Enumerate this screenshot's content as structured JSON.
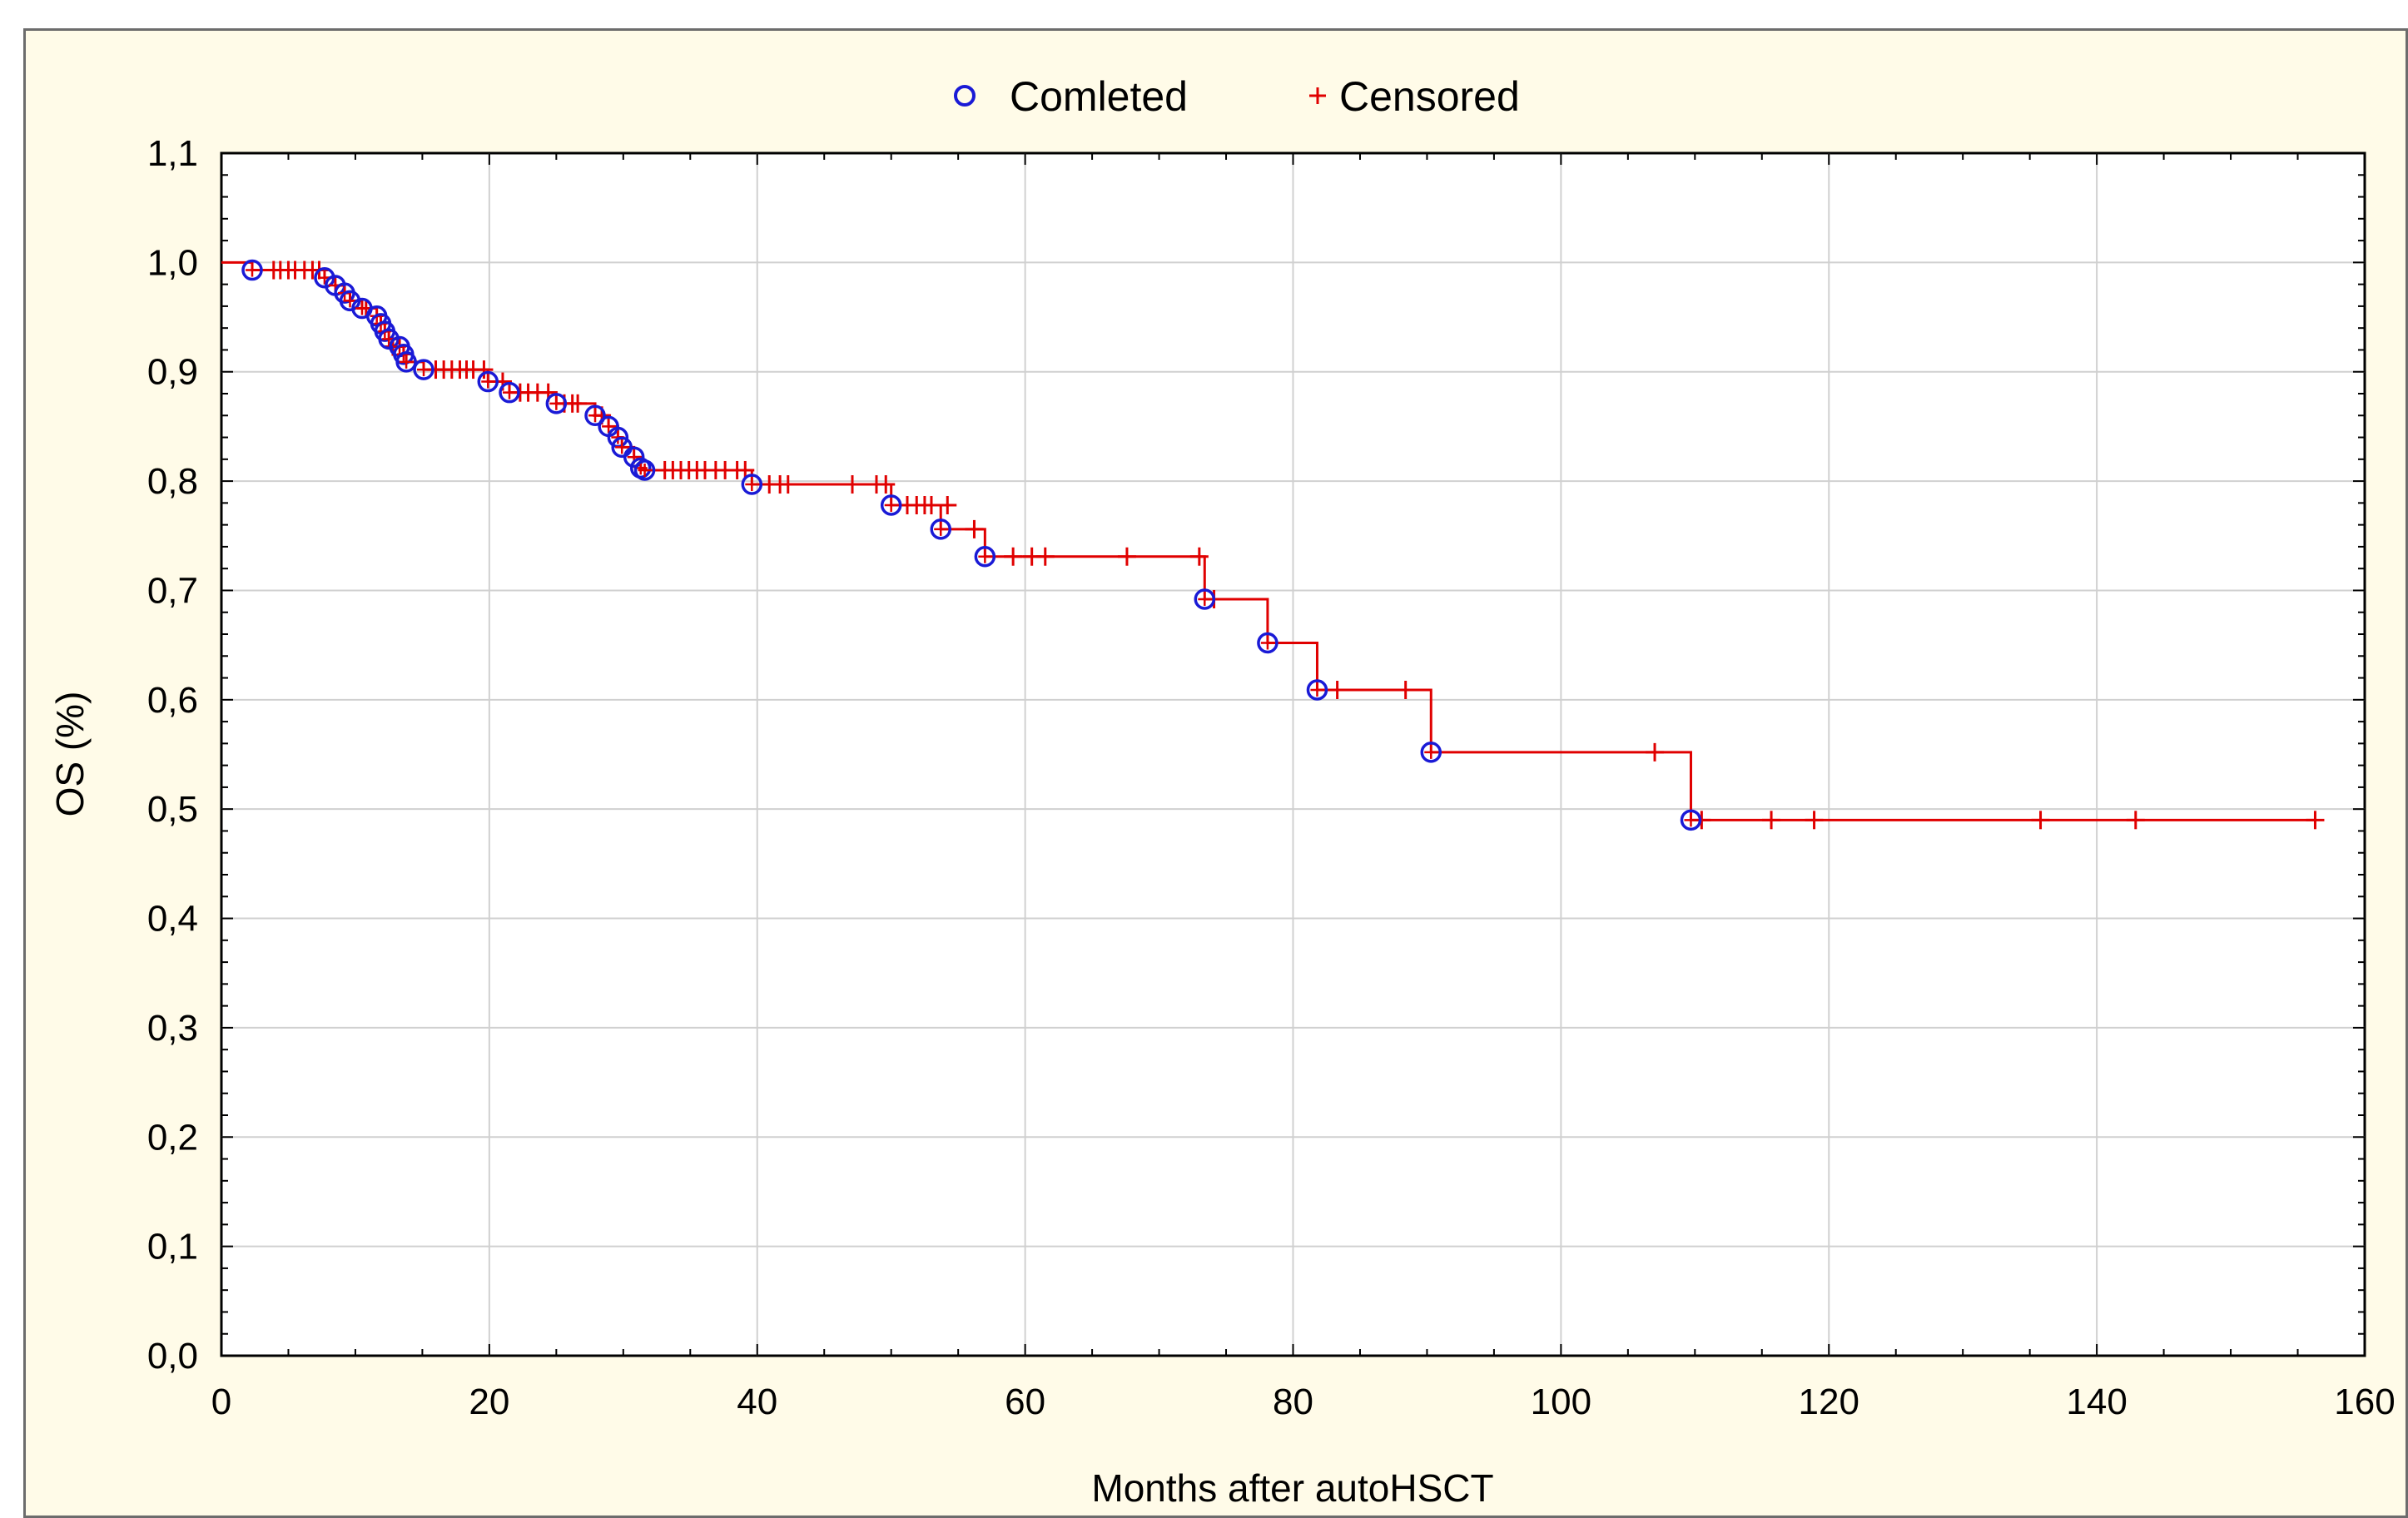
{
  "colors": {
    "background": "#fffbe8",
    "plot_background": "#ffffff",
    "grid": "#d0d0d0",
    "curve": "#e00000",
    "completed_marker": "#1a1ad6",
    "censored_marker": "#e00000",
    "text": "#000000"
  },
  "legend": {
    "completed_label": "Comleted",
    "censored_label": "Censored",
    "completed_icon": "circle-marker-icon",
    "censored_icon": "plus-marker-icon",
    "placement": "top-center"
  },
  "chart_data": {
    "type": "line",
    "subtype": "kaplan-meier step curve",
    "title": "",
    "xlabel": "Months after autoHSCT",
    "ylabel": "OS (%)",
    "xlim": [
      0,
      160
    ],
    "ylim": [
      0.0,
      1.1
    ],
    "x_ticks": [
      0,
      20,
      40,
      60,
      80,
      100,
      120,
      140,
      160
    ],
    "x_tick_labels": [
      "0",
      "20",
      "40",
      "60",
      "80",
      "100",
      "120",
      "140",
      "160"
    ],
    "y_ticks": [
      0.0,
      0.1,
      0.2,
      0.3,
      0.4,
      0.5,
      0.6,
      0.7,
      0.8,
      0.9,
      1.0,
      1.1
    ],
    "y_tick_labels": [
      "0,0",
      "0,1",
      "0,2",
      "0,3",
      "0,4",
      "0,5",
      "0,6",
      "0,7",
      "0,8",
      "0,9",
      "1,0",
      "1,1"
    ],
    "grid": true,
    "series": [
      {
        "name": "Comleted",
        "marker": "circle",
        "x": [
          2.3,
          7.7,
          8.5,
          9.2,
          9.6,
          10.5,
          11.6,
          11.9,
          12.2,
          12.5,
          13.3,
          13.6,
          13.8,
          15.1,
          19.9,
          21.5,
          25.0,
          27.9,
          28.9,
          29.6,
          29.9,
          30.8,
          31.3,
          31.6,
          39.6,
          50.0,
          53.7,
          57.0,
          73.4,
          78.1,
          81.8,
          90.3,
          109.7
        ],
        "y": [
          0.993,
          0.986,
          0.979,
          0.972,
          0.965,
          0.958,
          0.951,
          0.944,
          0.937,
          0.93,
          0.923,
          0.916,
          0.909,
          0.902,
          0.891,
          0.881,
          0.871,
          0.86,
          0.85,
          0.84,
          0.831,
          0.822,
          0.812,
          0.81,
          0.797,
          0.778,
          0.756,
          0.731,
          0.692,
          0.652,
          0.609,
          0.552,
          0.49
        ]
      },
      {
        "name": "Censored",
        "marker": "plus",
        "x": [
          3.9,
          4.4,
          5.0,
          5.5,
          6.2,
          6.8,
          7.3,
          10.8,
          12.8,
          16.0,
          16.6,
          17.2,
          17.8,
          18.3,
          18.8,
          19.6,
          21.0,
          22.3,
          22.9,
          23.6,
          24.4,
          25.6,
          26.2,
          26.6,
          28.4,
          33.1,
          33.7,
          34.3,
          34.9,
          35.5,
          36.1,
          36.9,
          37.6,
          38.5,
          39.1,
          40.9,
          41.7,
          42.3,
          47.1,
          48.9,
          49.6,
          51.2,
          51.9,
          52.5,
          53.0,
          54.2,
          56.2,
          59.1,
          60.5,
          61.5,
          67.6,
          73.0,
          74.1,
          83.3,
          88.4,
          107.0,
          110.5,
          115.7,
          118.9,
          135.8,
          142.9,
          156.3
        ],
        "y": [
          0.993,
          0.993,
          0.993,
          0.993,
          0.993,
          0.993,
          0.993,
          0.958,
          0.923,
          0.902,
          0.902,
          0.902,
          0.902,
          0.902,
          0.902,
          0.902,
          0.891,
          0.881,
          0.881,
          0.881,
          0.881,
          0.871,
          0.871,
          0.871,
          0.86,
          0.81,
          0.81,
          0.81,
          0.81,
          0.81,
          0.81,
          0.81,
          0.81,
          0.81,
          0.81,
          0.797,
          0.797,
          0.797,
          0.797,
          0.797,
          0.797,
          0.778,
          0.778,
          0.778,
          0.778,
          0.778,
          0.756,
          0.731,
          0.731,
          0.731,
          0.731,
          0.731,
          0.692,
          0.609,
          0.609,
          0.552,
          0.49,
          0.49,
          0.49,
          0.49,
          0.49,
          0.49
        ]
      }
    ],
    "step_curve": {
      "start_x": 0,
      "start_y": 1.0,
      "end_x": 156.3
    }
  }
}
